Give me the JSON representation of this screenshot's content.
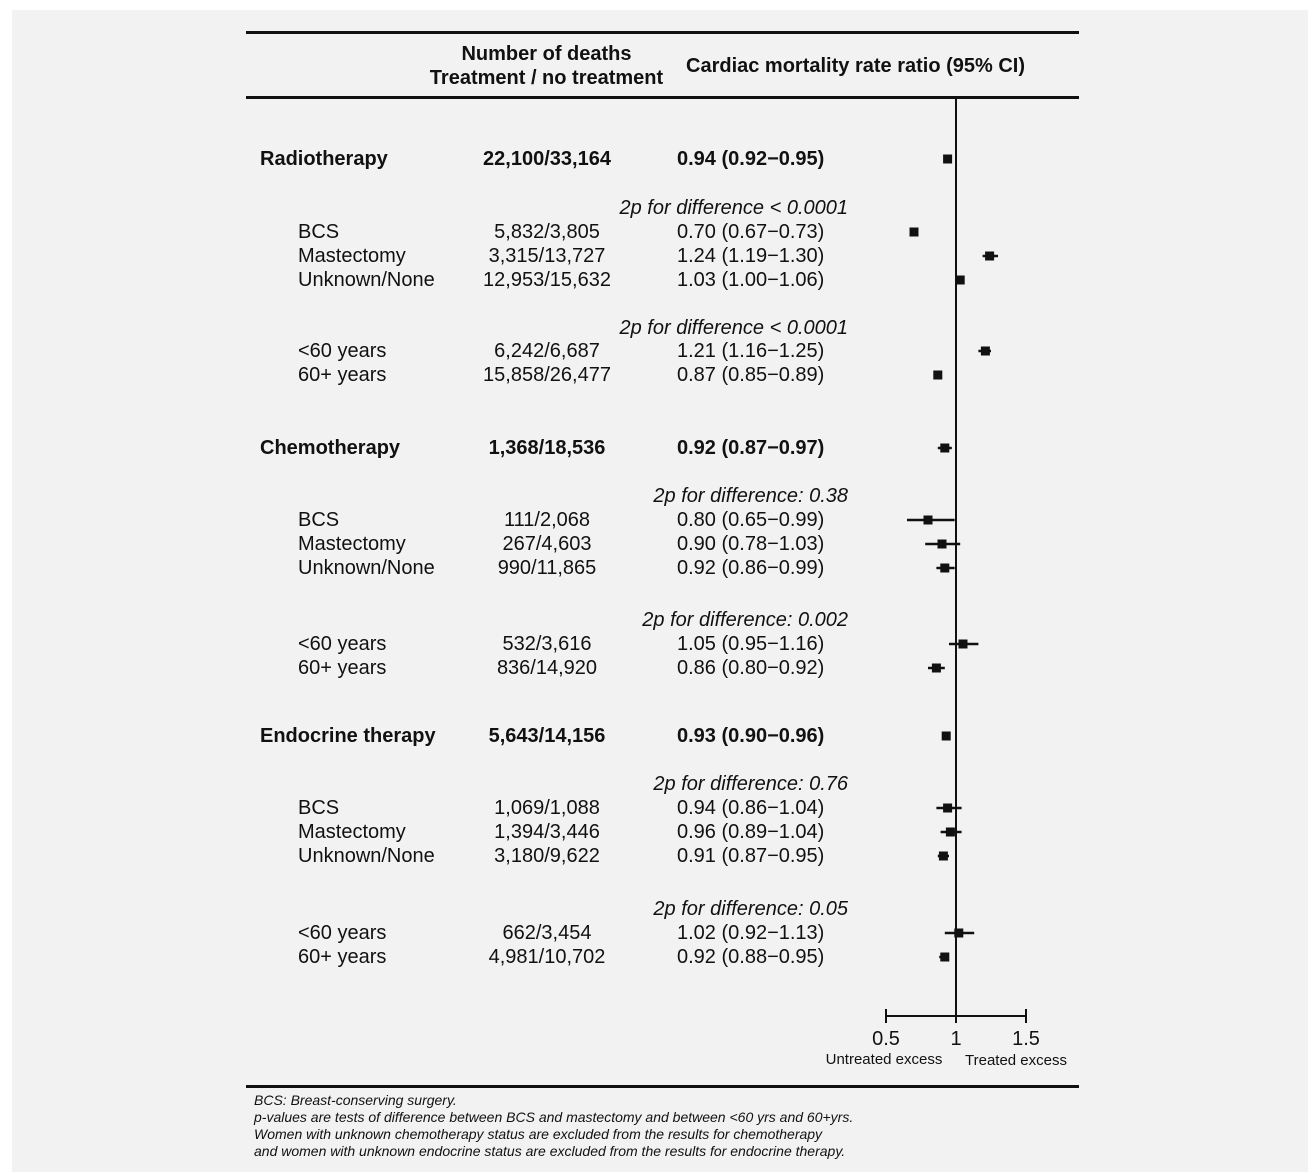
{
  "headers": {
    "deaths_line1": "Number of deaths",
    "deaths_line2": "Treatment / no treatment",
    "ratio": "Cardiac mortality rate ratio (95% CI)"
  },
  "axis": {
    "ticks": [
      "0.5",
      "1",
      "1.5"
    ],
    "label_left": "Untreated excess",
    "label_right": "Treated excess"
  },
  "notes": [
    "BCS: Breast-conserving surgery.",
    "p-values are tests of difference between BCS and mastectomy and between <60 yrs and 60+yrs.",
    "Women with unknown chemotherapy status are excluded from the results for chemotherapy",
    "and women with unknown endocrine status are excluded from the results for endocrine therapy."
  ],
  "colors": {
    "panel": "#f2f2f2",
    "ink": "#111111"
  },
  "chart_data": {
    "type": "forest",
    "xlim": [
      0.5,
      1.5
    ],
    "reference_line": 1,
    "rows": [
      {
        "kind": "main",
        "label": "Radiotherapy",
        "deaths": "22,100/33,164",
        "ci_text": "0.94 (0.92−0.95)",
        "estimate": 0.94,
        "lower": 0.92,
        "upper": 0.95
      },
      {
        "kind": "pdiff",
        "text": "2p for difference < 0.0001"
      },
      {
        "kind": "sub",
        "label": "BCS",
        "deaths": "5,832/3,805",
        "ci_text": "0.70 (0.67−0.73)",
        "estimate": 0.7,
        "lower": 0.67,
        "upper": 0.73
      },
      {
        "kind": "sub",
        "label": "Mastectomy",
        "deaths": "3,315/13,727",
        "ci_text": "1.24 (1.19−1.30)",
        "estimate": 1.24,
        "lower": 1.19,
        "upper": 1.3
      },
      {
        "kind": "sub",
        "label": "Unknown/None",
        "deaths": "12,953/15,632",
        "ci_text": "1.03 (1.00−1.06)",
        "estimate": 1.03,
        "lower": 1.0,
        "upper": 1.06
      },
      {
        "kind": "pdiff",
        "text": "2p for difference < 0.0001"
      },
      {
        "kind": "sub",
        "label": "<60 years",
        "deaths": "6,242/6,687",
        "ci_text": "1.21 (1.16−1.25)",
        "estimate": 1.21,
        "lower": 1.16,
        "upper": 1.25
      },
      {
        "kind": "sub",
        "label": "60+ years",
        "deaths": "15,858/26,477",
        "ci_text": "0.87 (0.85−0.89)",
        "estimate": 0.87,
        "lower": 0.85,
        "upper": 0.89
      },
      {
        "kind": "main",
        "label": "Chemotherapy",
        "deaths": "1,368/18,536",
        "ci_text": "0.92 (0.87−0.97)",
        "estimate": 0.92,
        "lower": 0.87,
        "upper": 0.97
      },
      {
        "kind": "pdiff",
        "text": "2p for difference: 0.38"
      },
      {
        "kind": "sub",
        "label": "BCS",
        "deaths": "111/2,068",
        "ci_text": "0.80 (0.65−0.99)",
        "estimate": 0.8,
        "lower": 0.65,
        "upper": 0.99
      },
      {
        "kind": "sub",
        "label": "Mastectomy",
        "deaths": "267/4,603",
        "ci_text": "0.90 (0.78−1.03)",
        "estimate": 0.9,
        "lower": 0.78,
        "upper": 1.03
      },
      {
        "kind": "sub",
        "label": "Unknown/None",
        "deaths": "990/11,865",
        "ci_text": "0.92 (0.86−0.99)",
        "estimate": 0.92,
        "lower": 0.86,
        "upper": 0.99
      },
      {
        "kind": "pdiff",
        "text": "2p for difference: 0.002"
      },
      {
        "kind": "sub",
        "label": "<60 years",
        "deaths": "532/3,616",
        "ci_text": "1.05 (0.95−1.16)",
        "estimate": 1.05,
        "lower": 0.95,
        "upper": 1.16
      },
      {
        "kind": "sub",
        "label": "60+ years",
        "deaths": "836/14,920",
        "ci_text": "0.86 (0.80−0.92)",
        "estimate": 0.86,
        "lower": 0.8,
        "upper": 0.92
      },
      {
        "kind": "main",
        "label": "Endocrine therapy",
        "deaths": "5,643/14,156",
        "ci_text": "0.93 (0.90−0.96)",
        "estimate": 0.93,
        "lower": 0.9,
        "upper": 0.96
      },
      {
        "kind": "pdiff",
        "text": "2p for difference: 0.76"
      },
      {
        "kind": "sub",
        "label": "BCS",
        "deaths": "1,069/1,088",
        "ci_text": "0.94 (0.86−1.04)",
        "estimate": 0.94,
        "lower": 0.86,
        "upper": 1.04
      },
      {
        "kind": "sub",
        "label": "Mastectomy",
        "deaths": "1,394/3,446",
        "ci_text": "0.96 (0.89−1.04)",
        "estimate": 0.96,
        "lower": 0.89,
        "upper": 1.04
      },
      {
        "kind": "sub",
        "label": "Unknown/None",
        "deaths": "3,180/9,622",
        "ci_text": "0.91 (0.87−0.95)",
        "estimate": 0.91,
        "lower": 0.87,
        "upper": 0.95
      },
      {
        "kind": "pdiff",
        "text": "2p for difference: 0.05"
      },
      {
        "kind": "sub",
        "label": "<60 years",
        "deaths": "662/3,454",
        "ci_text": "1.02 (0.92−1.13)",
        "estimate": 1.02,
        "lower": 0.92,
        "upper": 1.13
      },
      {
        "kind": "sub",
        "label": "60+ years",
        "deaths": "4,981/10,702",
        "ci_text": "0.92 (0.88−0.95)",
        "estimate": 0.92,
        "lower": 0.88,
        "upper": 0.95
      }
    ]
  }
}
